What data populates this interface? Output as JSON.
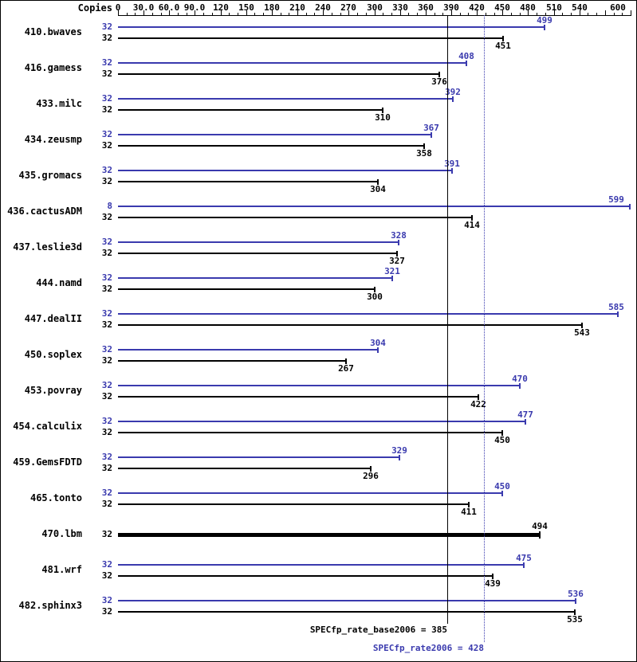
{
  "header": {
    "copies_label": "Copies"
  },
  "chart_data": {
    "type": "bar",
    "orientation": "horizontal",
    "title": "",
    "xlabel": "",
    "ylabel": "",
    "axis": {
      "min": 0,
      "max": 600,
      "major_tick_step": 30,
      "minor_tick_step": 10,
      "tick_values": [
        0,
        30,
        60,
        90,
        120,
        150,
        180,
        210,
        240,
        270,
        300,
        330,
        360,
        390,
        420,
        450,
        480,
        510,
        540,
        600
      ],
      "tick_labels": [
        "0",
        "30.0",
        "60.0",
        "90.0",
        "120",
        "150",
        "180",
        "210",
        "240",
        "270",
        "300",
        "330",
        "360",
        "390",
        "420",
        "450",
        "480",
        "510",
        "540",
        "600"
      ]
    },
    "colors": {
      "peak": "#3a3aae",
      "base": "#000000"
    },
    "benchmarks": [
      {
        "name": "410.bwaves",
        "peak": {
          "copies": 32,
          "value": 499
        },
        "base": {
          "copies": 32,
          "value": 451
        }
      },
      {
        "name": "416.gamess",
        "peak": {
          "copies": 32,
          "value": 408
        },
        "base": {
          "copies": 32,
          "value": 376
        }
      },
      {
        "name": "433.milc",
        "peak": {
          "copies": 32,
          "value": 392
        },
        "base": {
          "copies": 32,
          "value": 310
        }
      },
      {
        "name": "434.zeusmp",
        "peak": {
          "copies": 32,
          "value": 367
        },
        "base": {
          "copies": 32,
          "value": 358
        }
      },
      {
        "name": "435.gromacs",
        "peak": {
          "copies": 32,
          "value": 391
        },
        "base": {
          "copies": 32,
          "value": 304
        }
      },
      {
        "name": "436.cactusADM",
        "peak": {
          "copies": 8,
          "value": 599
        },
        "base": {
          "copies": 32,
          "value": 414
        }
      },
      {
        "name": "437.leslie3d",
        "peak": {
          "copies": 32,
          "value": 328
        },
        "base": {
          "copies": 32,
          "value": 327
        }
      },
      {
        "name": "444.namd",
        "peak": {
          "copies": 32,
          "value": 321
        },
        "base": {
          "copies": 32,
          "value": 300
        }
      },
      {
        "name": "447.dealII",
        "peak": {
          "copies": 32,
          "value": 585
        },
        "base": {
          "copies": 32,
          "value": 543
        }
      },
      {
        "name": "450.soplex",
        "peak": {
          "copies": 32,
          "value": 304
        },
        "base": {
          "copies": 32,
          "value": 267
        }
      },
      {
        "name": "453.povray",
        "peak": {
          "copies": 32,
          "value": 470
        },
        "base": {
          "copies": 32,
          "value": 422
        }
      },
      {
        "name": "454.calculix",
        "peak": {
          "copies": 32,
          "value": 477
        },
        "base": {
          "copies": 32,
          "value": 450
        }
      },
      {
        "name": "459.GemsFDTD",
        "peak": {
          "copies": 32,
          "value": 329
        },
        "base": {
          "copies": 32,
          "value": 296
        }
      },
      {
        "name": "465.tonto",
        "peak": {
          "copies": 32,
          "value": 450
        },
        "base": {
          "copies": 32,
          "value": 411
        }
      },
      {
        "name": "470.lbm",
        "single": {
          "copies": 32,
          "value": 494
        }
      },
      {
        "name": "481.wrf",
        "peak": {
          "copies": 32,
          "value": 475
        },
        "base": {
          "copies": 32,
          "value": 439
        }
      },
      {
        "name": "482.sphinx3",
        "peak": {
          "copies": 32,
          "value": 536
        },
        "base": {
          "copies": 32,
          "value": 535
        }
      }
    ],
    "reference_lines": [
      {
        "key": "base",
        "label": "SPECfp_rate_base2006 = 385",
        "value": 385,
        "style": "solid",
        "color": "#000000"
      },
      {
        "key": "peak",
        "label": "SPECfp_rate2006 = 428",
        "value": 428,
        "style": "dotted",
        "color": "#3a3aae"
      }
    ]
  }
}
